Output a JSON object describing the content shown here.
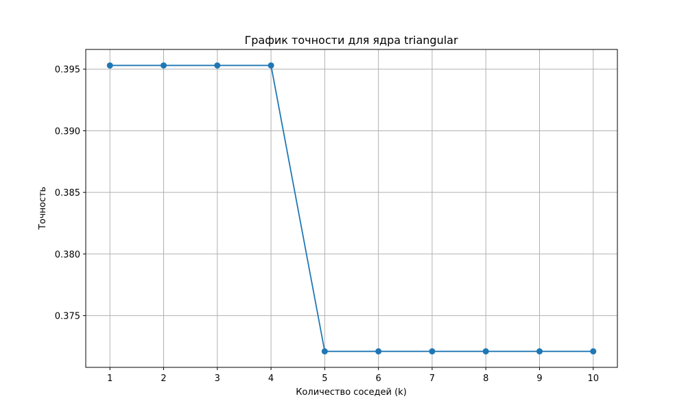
{
  "chart_data": {
    "type": "line",
    "title": "График точности для ядра triangular",
    "xlabel": "Количество соседей (k)",
    "ylabel": "Точность",
    "x": [
      1,
      2,
      3,
      4,
      5,
      6,
      7,
      8,
      9,
      10
    ],
    "x_ticks": [
      "1",
      "2",
      "3",
      "4",
      "5",
      "6",
      "7",
      "8",
      "9",
      "10"
    ],
    "y_ticks": [
      "0.375",
      "0.380",
      "0.385",
      "0.390",
      "0.395"
    ],
    "y_tick_values": [
      0.375,
      0.38,
      0.385,
      0.39,
      0.395
    ],
    "xlim": [
      0.55,
      10.45
    ],
    "ylim": [
      0.3708,
      0.3966
    ],
    "grid": true,
    "series": [
      {
        "values": [
          0.3953,
          0.3953,
          0.3953,
          0.3953,
          0.3721,
          0.3721,
          0.3721,
          0.3721,
          0.3721,
          0.3721
        ],
        "color": "#1f77b4",
        "marker": "circle"
      }
    ]
  }
}
